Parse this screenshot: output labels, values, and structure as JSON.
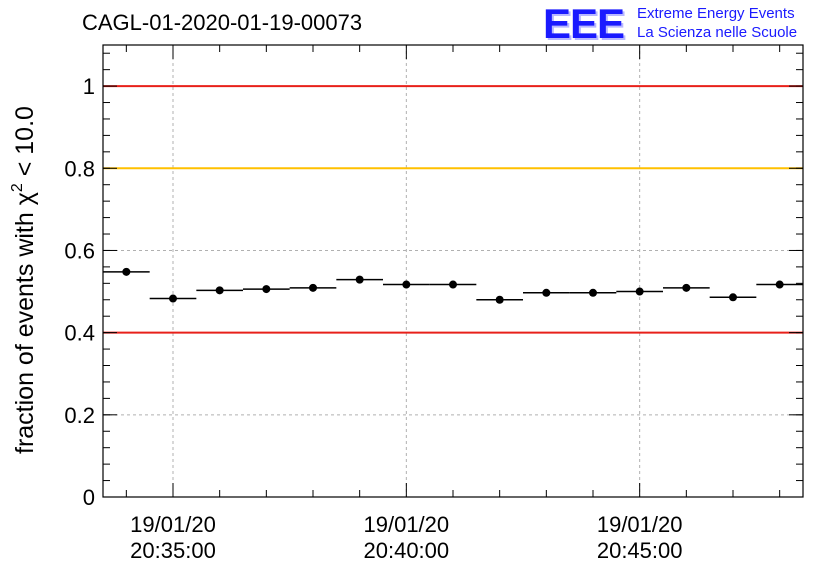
{
  "header": {
    "run_title": "CAGL-01-2020-01-19-00073",
    "logo_mark": "EEE",
    "logo_line1": "Extreme Energy Events",
    "logo_line2": "La Scienza nelle Scuole"
  },
  "chart_data": {
    "type": "scatter",
    "title": "CAGL-01-2020-01-19-00073",
    "ylabel_main": "fraction of events with χ",
    "ylabel_sup": "2",
    "ylabel_tail": " < 10.0",
    "xlabel": "",
    "ylim": [
      0,
      1.1
    ],
    "xlim": [
      0,
      15
    ],
    "grid": true,
    "y_ticks": [
      {
        "value": 0,
        "label": "0"
      },
      {
        "value": 0.2,
        "label": "0.2"
      },
      {
        "value": 0.4,
        "label": "0.4"
      },
      {
        "value": 0.6,
        "label": "0.6"
      },
      {
        "value": 0.8,
        "label": "0.8"
      },
      {
        "value": 1.0,
        "label": "1"
      }
    ],
    "x_ticks": [
      {
        "value": 1.5,
        "date": "19/01/20",
        "time": "20:35:00"
      },
      {
        "value": 6.5,
        "date": "19/01/20",
        "time": "20:40:00"
      },
      {
        "value": 11.5,
        "date": "19/01/20",
        "time": "20:45:00"
      }
    ],
    "x_minor_ticks": [
      0.5,
      2.5,
      3.5,
      4.5,
      5.5,
      7.5,
      8.5,
      9.5,
      10.5,
      12.5,
      13.5,
      14.5
    ],
    "reference_lines": [
      {
        "y": 1.0,
        "color": "#e8201a"
      },
      {
        "y": 0.8,
        "color": "#ffc000"
      },
      {
        "y": 0.4,
        "color": "#e8201a"
      }
    ],
    "series": [
      {
        "x": [
          0.5,
          1.5,
          2.5,
          3.5,
          4.5,
          5.5,
          6.5,
          7.5,
          8.5,
          9.5,
          10.5,
          11.5,
          12.5,
          13.5,
          14.5
        ],
        "x_halfwidth": 0.5,
        "y": [
          0.548,
          0.483,
          0.503,
          0.506,
          0.509,
          0.529,
          0.517,
          0.517,
          0.48,
          0.497,
          0.497,
          0.5,
          0.509,
          0.486,
          0.517
        ],
        "y_err": [
          0.009,
          0.009,
          0.009,
          0.009,
          0.009,
          0.009,
          0.009,
          0.009,
          0.009,
          0.009,
          0.009,
          0.009,
          0.009,
          0.009,
          0.009
        ],
        "color": "#000000"
      }
    ]
  }
}
